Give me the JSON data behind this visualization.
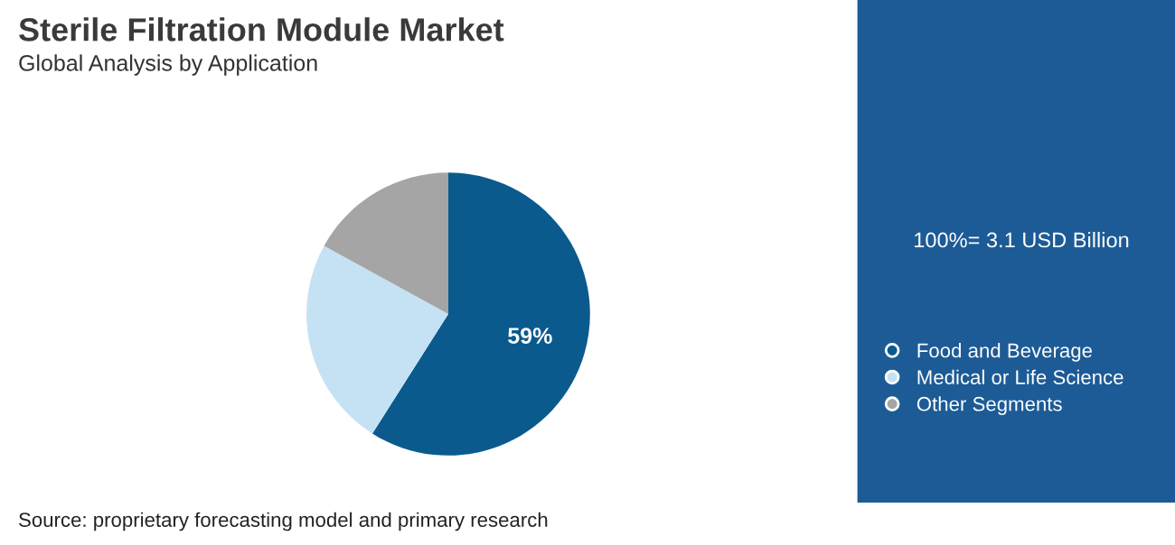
{
  "chart_data": {
    "type": "pie",
    "title": "Sterile Filtration Module Market",
    "subtitle": "Global Analysis by Application",
    "categories": [
      "Food and Beverage",
      "Medical or Life Science",
      "Other Segments"
    ],
    "values": [
      59,
      24,
      17
    ],
    "colors": [
      "#0b5a8e",
      "#c5e2f5",
      "#a5a5a5"
    ],
    "value_labels": [
      "59%",
      null,
      null
    ],
    "legend": "right",
    "annotations": [
      "100%= 3.1 USD Billion",
      "Source: proprietary forecasting model and primary research"
    ]
  }
}
